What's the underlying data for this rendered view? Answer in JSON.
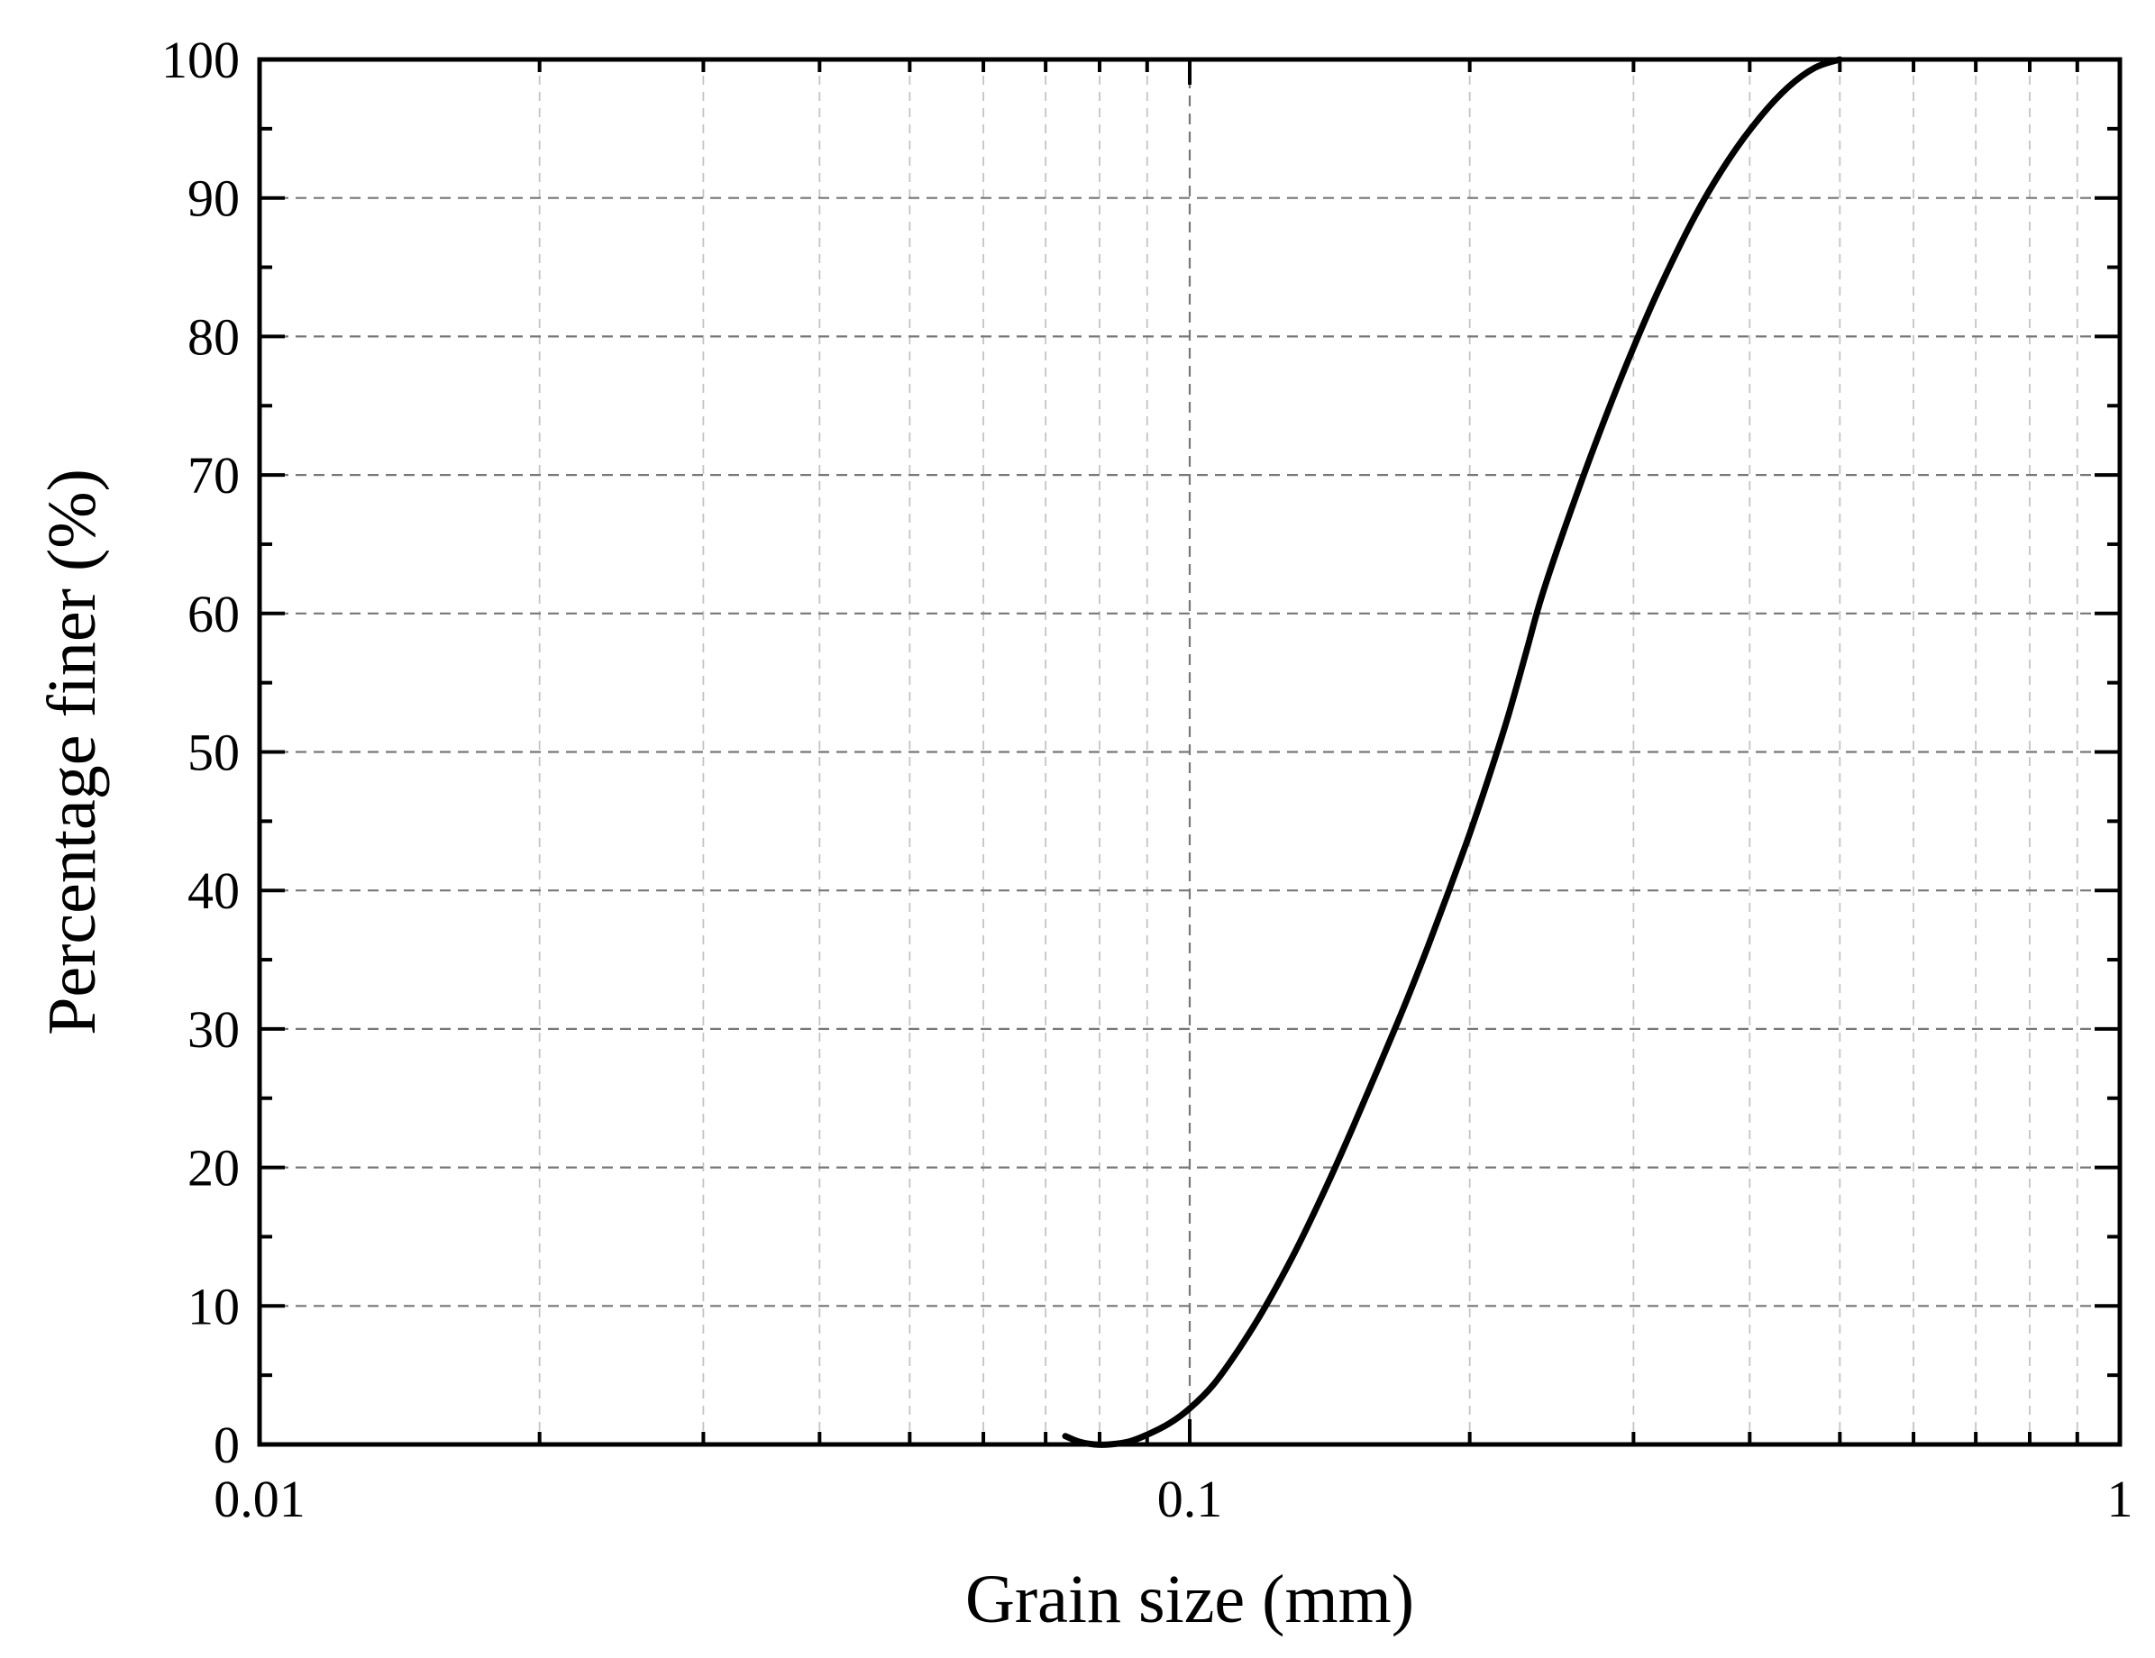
{
  "chart_data": {
    "type": "line",
    "title": "",
    "xlabel": "Grain size (mm)",
    "ylabel": "Percentage finer (%)",
    "xscale": "log",
    "xlim": [
      0.01,
      1
    ],
    "ylim": [
      0,
      100
    ],
    "grid": true,
    "legend": "none",
    "x_tick_values": [
      0.01,
      0.1,
      1
    ],
    "x_tick_labels": [
      "0.01",
      "0.1",
      "1"
    ],
    "y_tick_values": [
      0,
      10,
      20,
      30,
      40,
      50,
      60,
      70,
      80,
      90,
      100
    ],
    "y_tick_labels": [
      "0",
      "10",
      "20",
      "30",
      "40",
      "50",
      "60",
      "70",
      "80",
      "90",
      "100"
    ],
    "series": [
      {
        "color": "#000000",
        "x": [
          0.0735,
          0.076,
          0.079,
          0.082,
          0.086,
          0.09,
          0.095,
          0.1,
          0.106,
          0.113,
          0.12,
          0.13,
          0.14,
          0.15,
          0.16,
          0.17,
          0.18,
          0.19,
          0.2,
          0.21,
          0.22,
          0.23,
          0.24,
          0.26,
          0.28,
          0.3,
          0.32,
          0.35,
          0.38,
          0.41,
          0.44,
          0.47,
          0.5
        ],
        "y": [
          0.6,
          0.2,
          0,
          0,
          0.2,
          0.7,
          1.5,
          2.6,
          4.3,
          6.9,
          9.7,
          14.0,
          18.5,
          23.0,
          27.4,
          31.6,
          35.8,
          40.0,
          44.1,
          48.3,
          52.6,
          57.2,
          61.6,
          68.4,
          74.2,
          79.2,
          83.5,
          88.8,
          92.8,
          95.8,
          98.0,
          99.4,
          100
        ]
      }
    ]
  }
}
